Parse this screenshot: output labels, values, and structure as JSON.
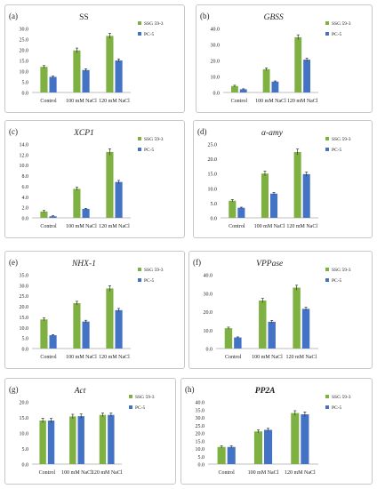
{
  "colors": {
    "ssg": "#7eb141",
    "pc": "#4472c4",
    "axis": "#bfbfbf",
    "text": "#222222"
  },
  "chart_data": [
    {
      "id": "a",
      "type": "bar",
      "letter": "(a)",
      "title": "SS",
      "title_style": "upright",
      "categories": [
        "Control",
        "100 mM NaCl",
        "120 mM NaCl"
      ],
      "yticks": [
        "0.0",
        "5.0",
        "10.0",
        "15.0",
        "20.0",
        "25.0",
        "30.0"
      ],
      "ylim": [
        0,
        30
      ],
      "series": [
        {
          "name": "SSG 59-3",
          "values": [
            12,
            19.7,
            26.5
          ],
          "errors": [
            0.6,
            1.1,
            1.2
          ]
        },
        {
          "name": "PC-5",
          "values": [
            7.3,
            10.5,
            15
          ],
          "errors": [
            0.4,
            0.6,
            0.7
          ]
        }
      ]
    },
    {
      "id": "b",
      "type": "bar",
      "letter": "(b)",
      "title": "GBSS",
      "title_style": "italic",
      "categories": [
        "Control",
        "100 mM NaCl",
        "120 mM NaCl"
      ],
      "yticks": [
        "0.0",
        "10.0",
        "20.0",
        "30.0",
        "40.0"
      ],
      "ylim": [
        0,
        40
      ],
      "series": [
        {
          "name": "SSG 59-3",
          "values": [
            4,
            14.5,
            34.5
          ],
          "errors": [
            0.5,
            0.8,
            1.5
          ]
        },
        {
          "name": "PC-5",
          "values": [
            2,
            6.8,
            20.5
          ],
          "errors": [
            0.3,
            0.4,
            1.0
          ]
        }
      ]
    },
    {
      "id": "c",
      "type": "bar",
      "letter": "(c)",
      "title": "XCP1",
      "title_style": "italic",
      "categories": [
        "Control",
        "100 mM NaCl",
        "120 mM NaCl"
      ],
      "yticks": [
        "0.0",
        "2.0",
        "4.0",
        "6.0",
        "8.0",
        "10.0",
        "12.0",
        "14.0"
      ],
      "ylim": [
        0,
        14
      ],
      "series": [
        {
          "name": "SSG 59-3",
          "values": [
            1.2,
            5.5,
            12.5
          ],
          "errors": [
            0.2,
            0.3,
            0.6
          ]
        },
        {
          "name": "PC-5",
          "values": [
            0.3,
            1.7,
            6.8
          ],
          "errors": [
            0.1,
            0.1,
            0.3
          ]
        }
      ]
    },
    {
      "id": "d",
      "type": "bar",
      "letter": "(d)",
      "title": "α-amy",
      "title_style": "italic",
      "categories": [
        "Control",
        "100 mM NaCl",
        "120 mM NaCl"
      ],
      "yticks": [
        "0.0",
        "5.0",
        "10.0",
        "15.0",
        "20.0",
        "25.0"
      ],
      "ylim": [
        0,
        25
      ],
      "series": [
        {
          "name": "SSG 59-3",
          "values": [
            5.8,
            15,
            22.3
          ],
          "errors": [
            0.4,
            0.8,
            1.0
          ]
        },
        {
          "name": "PC-5",
          "values": [
            3.4,
            8.2,
            14.8
          ],
          "errors": [
            0.2,
            0.4,
            0.7
          ]
        }
      ]
    },
    {
      "id": "e",
      "type": "bar",
      "letter": "(e)",
      "title": "NHX-1",
      "title_style": "italic",
      "categories": [
        "Control",
        "100 mM NaCl",
        "120 mM NaCl"
      ],
      "yticks": [
        "0.0",
        "5.0",
        "10.0",
        "15.0",
        "20.0",
        "25.0",
        "30.0",
        "35.0"
      ],
      "ylim": [
        0,
        35
      ],
      "series": [
        {
          "name": "SSG 59-3",
          "values": [
            13.8,
            21.5,
            28.5
          ],
          "errors": [
            0.7,
            0.9,
            1.3
          ]
        },
        {
          "name": "PC-5",
          "values": [
            6.3,
            12.8,
            18.2
          ],
          "errors": [
            0.3,
            0.6,
            0.8
          ]
        }
      ]
    },
    {
      "id": "f",
      "type": "bar",
      "letter": "(f)",
      "title": "VPPase",
      "title_style": "italic",
      "categories": [
        "Control",
        "100 mM NaCl",
        "120 mM NaCl"
      ],
      "yticks": [
        "0.0",
        "10.0",
        "20.0",
        "30.0",
        "40.0"
      ],
      "ylim": [
        0,
        40
      ],
      "series": [
        {
          "name": "SSG 59-3",
          "values": [
            11,
            26,
            33
          ],
          "errors": [
            0.6,
            1.2,
            1.3
          ]
        },
        {
          "name": "PC-5",
          "values": [
            6,
            14.5,
            21.5
          ],
          "errors": [
            0.3,
            0.7,
            0.9
          ]
        }
      ]
    },
    {
      "id": "g",
      "type": "bar",
      "letter": "(g)",
      "title": "Act",
      "title_style": "italic",
      "categories": [
        "Control",
        "100 mM NaCl",
        "120 mM NaCl"
      ],
      "yticks": [
        "0.0",
        "5.0",
        "10.0",
        "15.0",
        "20.0"
      ],
      "ylim": [
        0,
        20
      ],
      "series": [
        {
          "name": "SSG 59-3",
          "values": [
            14,
            15.3,
            15.8
          ],
          "errors": [
            0.7,
            0.7,
            0.6
          ]
        },
        {
          "name": "PC-5",
          "values": [
            14,
            15.4,
            15.8
          ],
          "errors": [
            0.7,
            0.7,
            0.6
          ]
        }
      ]
    },
    {
      "id": "h",
      "type": "bar",
      "letter": "(h)",
      "title": "PP2A",
      "title_style": "bolditalic",
      "categories": [
        "Control",
        "100 mM NaCl",
        "120 mM NaCl"
      ],
      "yticks": [
        "0.0",
        "5.0",
        "10.0",
        "15.0",
        "20.0",
        "25.0",
        "30.0",
        "35.0",
        "40.0"
      ],
      "ylim": [
        0,
        40
      ],
      "series": [
        {
          "name": "SSG 59-3",
          "values": [
            11,
            21,
            32.8
          ],
          "errors": [
            0.8,
            1.0,
            1.5
          ]
        },
        {
          "name": "PC-5",
          "values": [
            11,
            22,
            32
          ],
          "errors": [
            0.8,
            1.0,
            1.5
          ]
        }
      ]
    }
  ]
}
